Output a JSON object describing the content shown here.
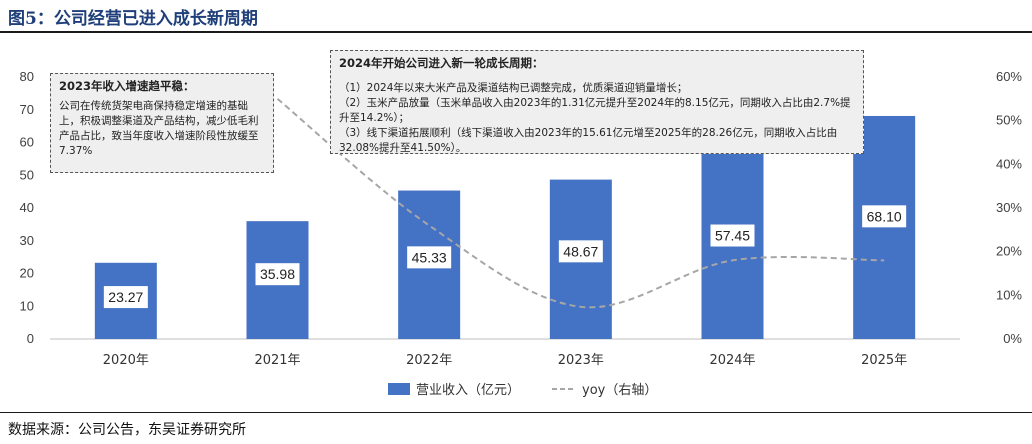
{
  "figure": {
    "title": "图5：公司经营已进入成长新周期",
    "source": "数据来源：公司公告，东吴证券研究所"
  },
  "annotations": {
    "left": {
      "title": "2023年收入增速趋平稳：",
      "body": "公司在传统货架电商保持稳定增速的基础上，积极调整渠道及产品结构，减少低毛利产品占比，致当年度收入增速阶段性放缓至7.37%"
    },
    "right": {
      "title": "2024年开始公司进入新一轮成长周期：",
      "lines": [
        "（1）2024年以来大米产品及渠道结构已调整完成，优质渠道迎销量增长；",
        "（2）玉米产品放量（玉米单品收入由2023年的1.31亿元提升至2024年的8.15亿元，同期收入占比由2.7%提升至14.2%）；",
        "（3）线下渠道拓展顺利（线下渠道收入由2023年的15.61亿元增至2025年的28.26亿元，同期收入占比由32.08%提升至41.50%）。"
      ]
    }
  },
  "chart_data": {
    "type": "bar",
    "categories": [
      "2020年",
      "2021年",
      "2022年",
      "2023年",
      "2024年",
      "2025年"
    ],
    "series": [
      {
        "name": "营业收入（亿元）",
        "type": "bar",
        "axis": "left",
        "color": "#4472c4",
        "values": [
          23.27,
          35.98,
          45.33,
          48.67,
          57.45,
          68.1
        ],
        "labels": [
          "23.27",
          "35.98",
          "45.33",
          "48.67",
          "57.45",
          "68.10"
        ]
      },
      {
        "name": "yoy（右轴）",
        "type": "line",
        "style": "dashed",
        "axis": "right",
        "color": "#a6a6a6",
        "values": [
          null,
          55,
          26,
          7.37,
          18,
          18
        ]
      }
    ],
    "y_left": {
      "min": 0,
      "max": 80,
      "step": 10,
      "ticks": [
        "0",
        "10",
        "20",
        "30",
        "40",
        "50",
        "60",
        "70",
        "80"
      ]
    },
    "y_right": {
      "min": 0,
      "max": 60,
      "step": 10,
      "ticks": [
        "0%",
        "10%",
        "20%",
        "30%",
        "40%",
        "50%",
        "60%"
      ]
    },
    "legend_position": "bottom",
    "grid": false
  }
}
